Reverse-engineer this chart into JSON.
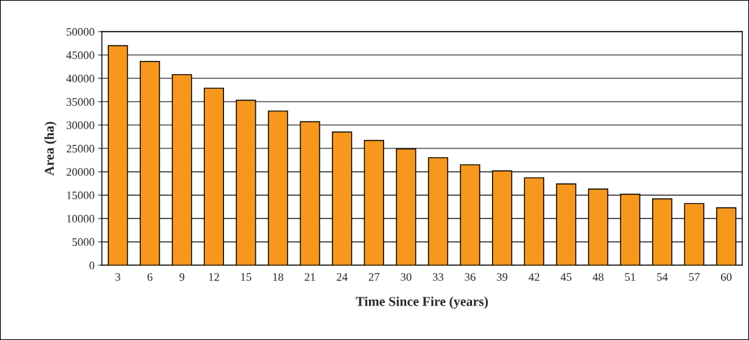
{
  "chart_data": {
    "type": "bar",
    "xlabel": "Time Since Fire (years)",
    "ylabel": "Area (ha)",
    "categories": [
      "3",
      "6",
      "9",
      "12",
      "15",
      "18",
      "21",
      "24",
      "27",
      "30",
      "33",
      "36",
      "39",
      "42",
      "45",
      "48",
      "51",
      "54",
      "57",
      "60"
    ],
    "values": [
      47000,
      43600,
      40800,
      37900,
      35300,
      33000,
      30700,
      28500,
      26700,
      24900,
      23000,
      21500,
      20200,
      18700,
      17400,
      16300,
      15200,
      14200,
      13200,
      12300
    ],
    "color": "#f7981d",
    "ylim": [
      0,
      50000
    ],
    "yticks": [
      0,
      5000,
      10000,
      15000,
      20000,
      25000,
      30000,
      35000,
      40000,
      45000,
      50000
    ],
    "grid": "y",
    "legend": false
  }
}
